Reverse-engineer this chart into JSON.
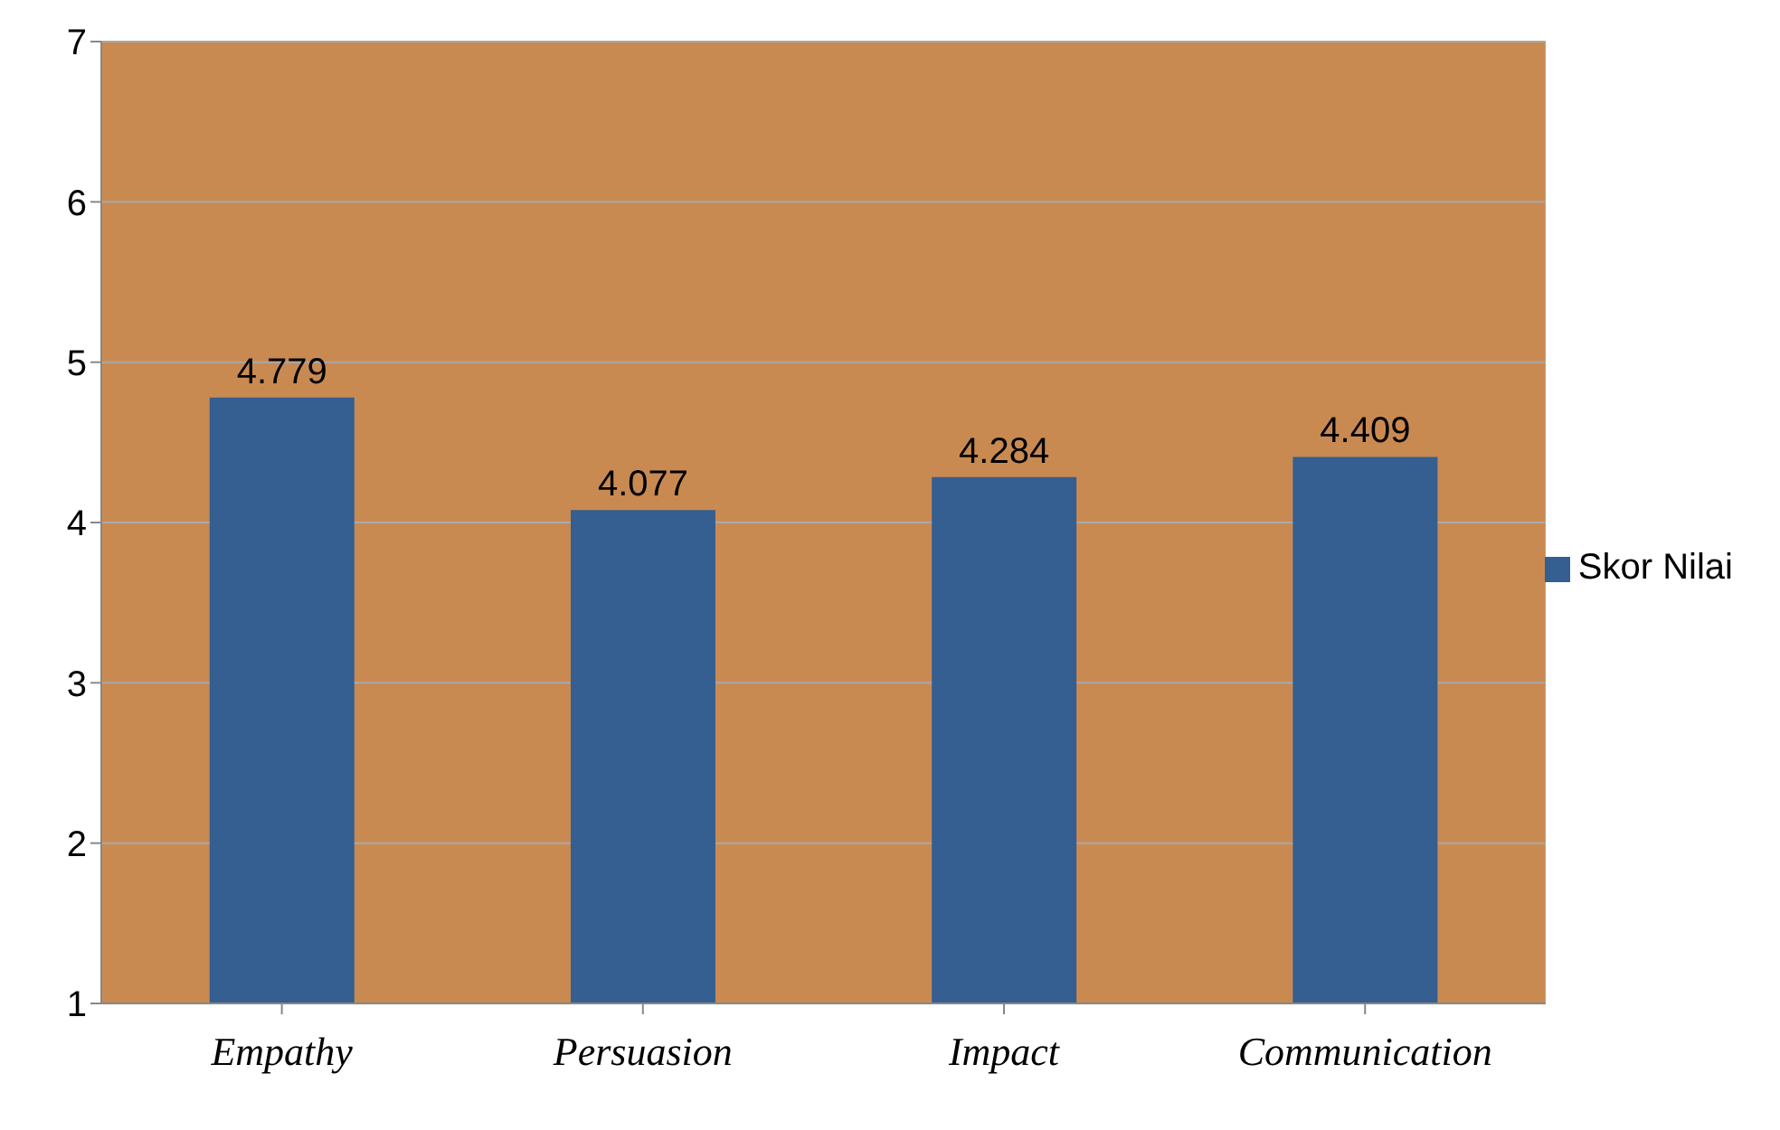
{
  "chart_data": {
    "type": "bar",
    "categories": [
      "Empathy",
      "Persuasion",
      "Impact",
      "Communication"
    ],
    "series": [
      {
        "name": "Skor Nilai",
        "color": "#355e91",
        "values": [
          4.779,
          4.077,
          4.284,
          4.409
        ]
      }
    ],
    "ylim": [
      1,
      7
    ],
    "yticks": [
      1,
      2,
      3,
      4,
      5,
      6,
      7
    ],
    "grid": "y",
    "legend": "right",
    "data_labels": true
  }
}
